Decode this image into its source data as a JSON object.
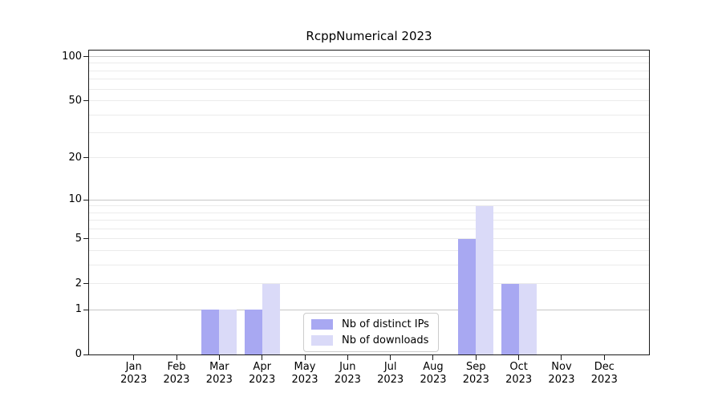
{
  "colors": {
    "background": "#ffffff",
    "spine": "#1a1a1a",
    "grid_major": "#c6c6c6",
    "grid_minor": "#ebebeb",
    "bar_distinct_ips": "#a8a8f2",
    "bar_downloads": "#dadaf8",
    "legend_border": "#cccccc",
    "text": "#000000"
  },
  "chart_data": {
    "type": "bar",
    "title": "RcppNumerical 2023",
    "xlabel": "",
    "ylabel": "",
    "x_year": "2023",
    "categories": [
      "Jan",
      "Feb",
      "Mar",
      "Apr",
      "May",
      "Jun",
      "Jul",
      "Aug",
      "Sep",
      "Oct",
      "Nov",
      "Dec"
    ],
    "series": [
      {
        "name": "Nb of distinct IPs",
        "color": "#a8a8f2",
        "values": [
          0,
          0,
          1,
          1,
          0,
          0,
          0,
          0,
          5,
          2,
          0,
          0
        ]
      },
      {
        "name": "Nb of downloads",
        "color": "#dadaf8",
        "values": [
          0,
          0,
          1,
          2,
          0,
          0,
          0,
          0,
          9,
          2,
          0,
          0
        ]
      }
    ],
    "y_axis": {
      "scale": "log10(1+y)",
      "ticks": [
        0,
        1,
        2,
        5,
        10,
        20,
        50,
        100
      ],
      "decade_gridlines": [
        1,
        10,
        100
      ],
      "minor_gridlines": [
        2,
        3,
        4,
        5,
        6,
        7,
        8,
        9,
        20,
        30,
        40,
        50,
        60,
        70,
        80,
        90
      ]
    },
    "ylim": [
      0,
      110
    ],
    "grid": "horizontal",
    "legend_position": "bottom-center"
  }
}
